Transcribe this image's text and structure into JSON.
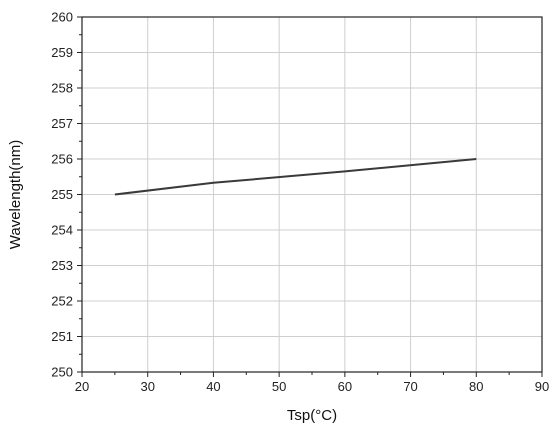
{
  "chart_data": {
    "type": "line",
    "title": "",
    "xlabel": "Tsp(°C)",
    "ylabel": "Wavelength(nm)",
    "xlim": [
      20,
      90
    ],
    "ylim": [
      250,
      260
    ],
    "xticks": [
      20,
      30,
      40,
      50,
      60,
      70,
      80,
      90
    ],
    "yticks": [
      250,
      251,
      252,
      253,
      254,
      255,
      256,
      257,
      258,
      259,
      260
    ],
    "grid": true,
    "legend": "none",
    "series": [
      {
        "color": "#3a3a3a",
        "x": [
          25,
          40,
          60,
          80
        ],
        "y": [
          255.0,
          255.33,
          255.65,
          256.0
        ]
      }
    ]
  }
}
